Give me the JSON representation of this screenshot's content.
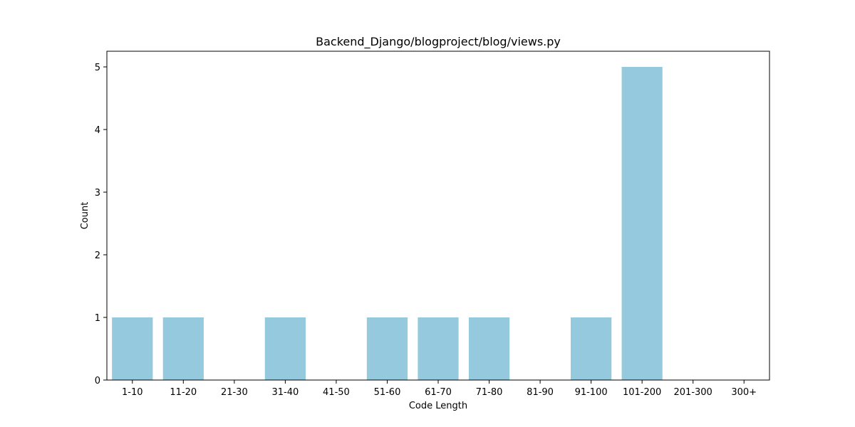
{
  "chart_data": {
    "type": "bar",
    "title": "Backend_Django/blogproject/blog/views.py",
    "xlabel": "Code Length",
    "ylabel": "Count",
    "categories": [
      "1-10",
      "11-20",
      "21-30",
      "31-40",
      "41-50",
      "51-60",
      "61-70",
      "71-80",
      "81-90",
      "91-100",
      "101-200",
      "201-300",
      "300+"
    ],
    "values": [
      1,
      1,
      0,
      1,
      0,
      1,
      1,
      1,
      0,
      1,
      5,
      0,
      0
    ],
    "ylim": [
      0,
      5.25
    ],
    "yticks": [
      0,
      1,
      2,
      3,
      4,
      5
    ],
    "bar_color": "#95c9de",
    "grid": false,
    "legend": "none"
  }
}
